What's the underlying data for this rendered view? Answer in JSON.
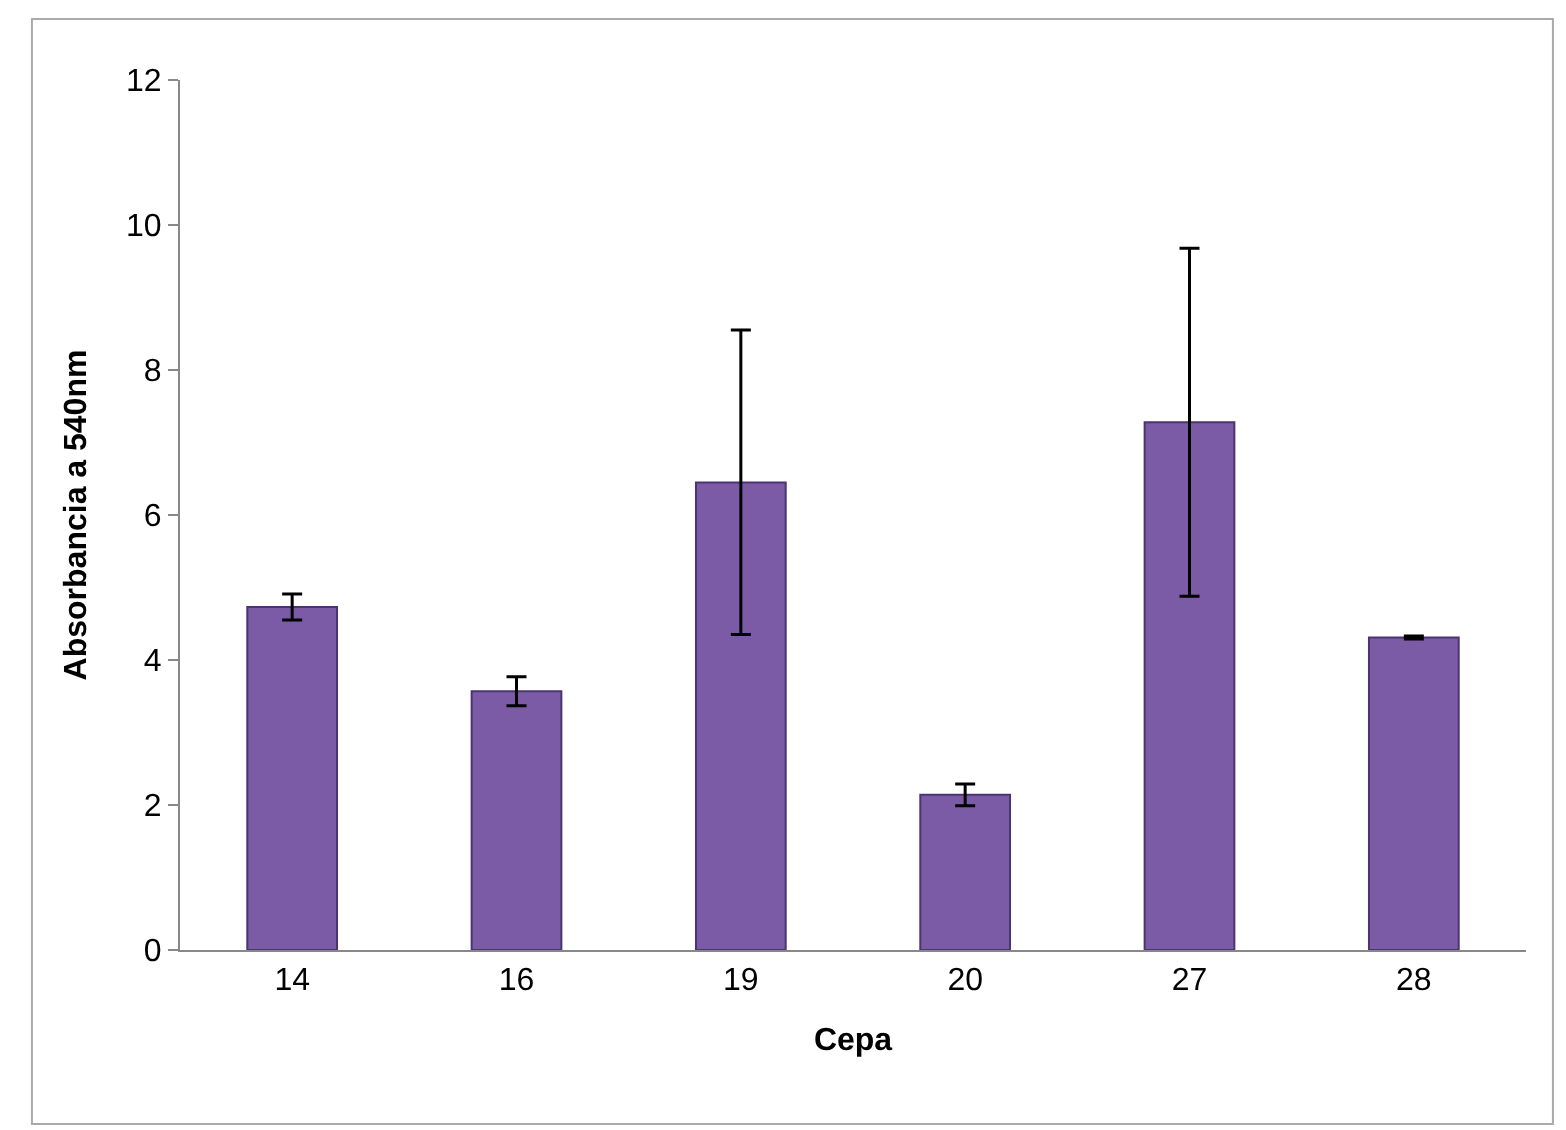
{
  "chart_data": {
    "type": "bar",
    "xlabel": "Cepa",
    "ylabel": "Absorbancia a 540nm",
    "categories": [
      "14",
      "16",
      "19",
      "20",
      "27",
      "28"
    ],
    "values": [
      4.73,
      3.57,
      6.45,
      2.14,
      7.28,
      4.31
    ],
    "errors": [
      0.18,
      0.2,
      2.1,
      0.15,
      2.4,
      0.02
    ],
    "color": "#7b5aa6",
    "ylim": [
      0,
      12
    ],
    "yticks": [
      0,
      2,
      4,
      6,
      8,
      10,
      12
    ]
  }
}
